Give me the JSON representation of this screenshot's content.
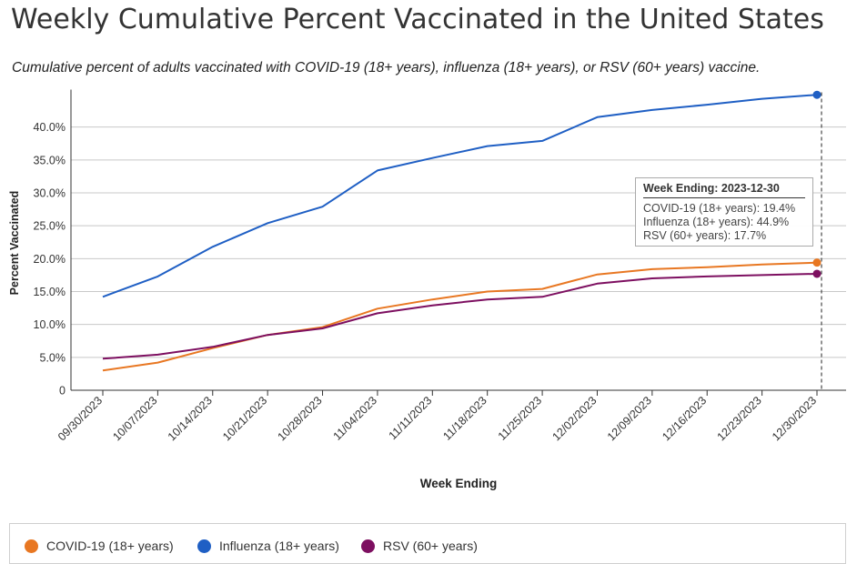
{
  "title": "Weekly Cumulative Percent Vaccinated in the United States",
  "subtitle": "Cumulative percent of adults vaccinated with COVID-19 (18+ years), influenza (18+ years), or RSV (60+ years) vaccine.",
  "tooltip": {
    "header": "Week Ending: 2023-12-30",
    "rows": [
      "COVID-19 (18+ years): 19.4%",
      "Influenza (18+ years): 44.9%",
      "RSV (60+ years): 17.7%"
    ]
  },
  "chart_data": {
    "type": "line",
    "xlabel": "Week Ending",
    "ylabel": "Percent Vaccinated",
    "ylim": [
      0,
      45
    ],
    "yticks": [
      0,
      5,
      10,
      15,
      20,
      25,
      30,
      35,
      40
    ],
    "ytick_labels": [
      "0",
      "5.0%",
      "10.0%",
      "15.0%",
      "20.0%",
      "25.0%",
      "30.0%",
      "35.0%",
      "40.0%"
    ],
    "grid": true,
    "legend_position": "bottom",
    "categories": [
      "09/30/2023",
      "10/07/2023",
      "10/14/2023",
      "10/21/2023",
      "10/28/2023",
      "11/04/2023",
      "11/11/2023",
      "11/18/2023",
      "11/25/2023",
      "12/02/2023",
      "12/09/2023",
      "12/16/2023",
      "12/23/2023",
      "12/30/2023"
    ],
    "series": [
      {
        "name": "COVID-19 (18+ years)",
        "color": "#e87722",
        "values": [
          3.0,
          4.2,
          6.4,
          8.4,
          9.6,
          12.4,
          13.8,
          15.0,
          15.4,
          17.6,
          18.4,
          18.7,
          19.1,
          19.4
        ]
      },
      {
        "name": "Influenza (18+ years)",
        "color": "#1f5fc4",
        "values": [
          14.2,
          17.3,
          21.8,
          25.4,
          27.9,
          33.4,
          35.3,
          37.1,
          37.9,
          41.5,
          42.6,
          43.4,
          44.3,
          44.9
        ]
      },
      {
        "name": "RSV (60+ years)",
        "color": "#7d0f60",
        "values": [
          4.8,
          5.4,
          6.6,
          8.4,
          9.4,
          11.7,
          12.9,
          13.8,
          14.2,
          16.2,
          17.0,
          17.3,
          17.5,
          17.7
        ]
      }
    ],
    "highlight_index": 13
  }
}
